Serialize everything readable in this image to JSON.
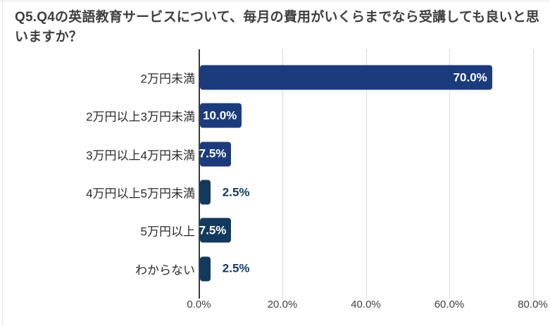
{
  "title": "Q5.Q4の英語教育サービスについて、毎月の費用がいくらまでなら受講しても良いと思いますか？",
  "chart_data": {
    "type": "bar",
    "orientation": "horizontal",
    "title": "Q5.Q4の英語教育サービスについて、毎月の費用がいくらまでなら受講しても良いと思いますか？",
    "categories": [
      "2万円未満",
      "2万円以上3万円未満",
      "3万円以上4万円未満",
      "4万円以上5万円未満",
      "5万円以上",
      "わからない"
    ],
    "values": [
      70.0,
      10.0,
      7.5,
      2.5,
      7.5,
      2.5
    ],
    "value_labels": [
      "70.0%",
      "10.0%",
      "7.5%",
      "2.5%",
      "7.5%",
      "2.5%"
    ],
    "value_label_placement": [
      "inside",
      "inside",
      "inside",
      "outside",
      "inside",
      "outside"
    ],
    "bar_colors": [
      "#1c3b7d",
      "#1c3b7d",
      "#1c3b7d",
      "#123a5e",
      "#123a5e",
      "#123a5e"
    ],
    "x_ticks": [
      "0.0%",
      "20.0%",
      "40.0%",
      "60.0%",
      "80.0%"
    ],
    "xlim": [
      0,
      80
    ],
    "xlabel": "",
    "ylabel": "",
    "grid": true,
    "legend": false
  },
  "colors": {
    "bar_primary": "#1c3b7d",
    "bar_secondary": "#123a5e",
    "title_text": "#3e3e3e",
    "category_text": "#2b2b2b",
    "axis_label_text": "#404040",
    "gridline": "#d9d9d9",
    "axis_line": "#3a3a3a",
    "background": "#ffffff"
  }
}
